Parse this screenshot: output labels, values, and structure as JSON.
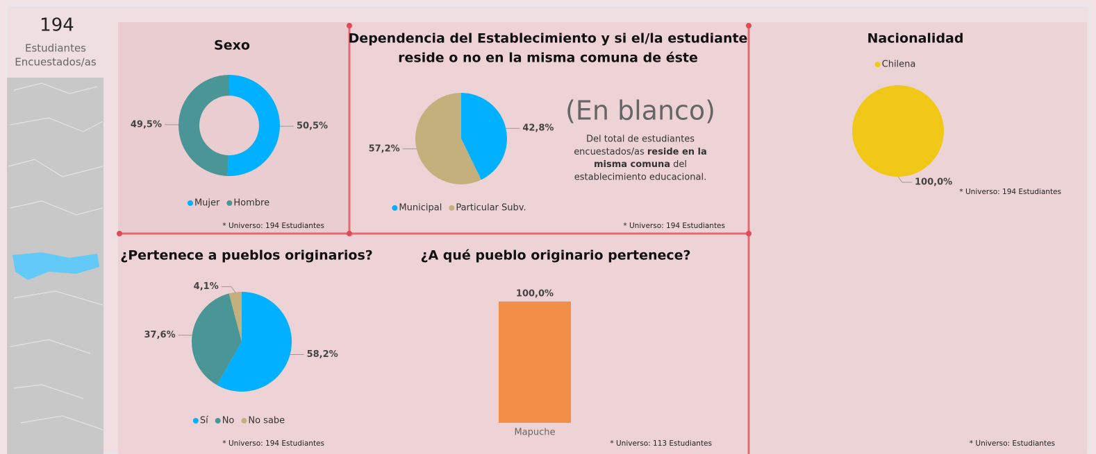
{
  "kpi": {
    "value": 194,
    "label": [
      "Estudiantes",
      "Encuestados/as"
    ]
  },
  "card": {
    "headline": "(En blanco)",
    "text": [
      "Del total de estudiantes",
      "encuestados/as ",
      "reside en la",
      "misma comuna",
      " del",
      "establecimiento educacional."
    ]
  },
  "extra_note": "* Universo:  Estudiantes",
  "chart_data": [
    {
      "type": "donut",
      "title": [
        "Sexo"
      ],
      "categories": [
        "Mujer",
        "Hombre"
      ],
      "values": [
        50.5,
        49.5
      ],
      "value_labels": [
        "50,5%",
        "49,5%"
      ],
      "colors": [
        "#01b0fe",
        "#4a9595"
      ],
      "note": "* Universo: 194 Estudiantes"
    },
    {
      "type": "pie",
      "title": [
        "Dependencia del Establecimiento y si el/la estudiante",
        "reside o no en la misma comuna de éste"
      ],
      "categories": [
        "Municipal",
        "Particular Subv."
      ],
      "values": [
        42.8,
        57.2
      ],
      "value_labels": [
        "42,8%",
        "57,2%"
      ],
      "colors": [
        "#01b0fe",
        "#c4b07c"
      ],
      "note": "* Universo: 194 Estudiantes"
    },
    {
      "type": "pie",
      "title": [
        "Nacionalidad"
      ],
      "categories": [
        "Chilena"
      ],
      "values": [
        100
      ],
      "value_labels": [
        "100,0%"
      ],
      "colors": [
        "#f1c817"
      ],
      "note": "* Universo: 194 Estudiantes"
    },
    {
      "type": "pie",
      "title": [
        "¿Pertenece a pueblos originarios?"
      ],
      "categories": [
        "Sí",
        "No",
        "No sabe"
      ],
      "values": [
        58.2,
        37.6,
        4.1
      ],
      "value_labels": [
        "58,2%",
        "37,6%",
        "4,1%"
      ],
      "colors": [
        "#01b0fe",
        "#4a9595",
        "#c4b07c"
      ],
      "note": "* Universo: 194 Estudiantes"
    },
    {
      "type": "bar",
      "title": [
        "¿A qué pueblo originario pertenece?"
      ],
      "categories": [
        "Mapuche"
      ],
      "values": [
        100
      ],
      "value_labels": [
        "100,0%"
      ],
      "colors": [
        "#f28f46"
      ],
      "note": "* Universo: 113 Estudiantes"
    }
  ]
}
